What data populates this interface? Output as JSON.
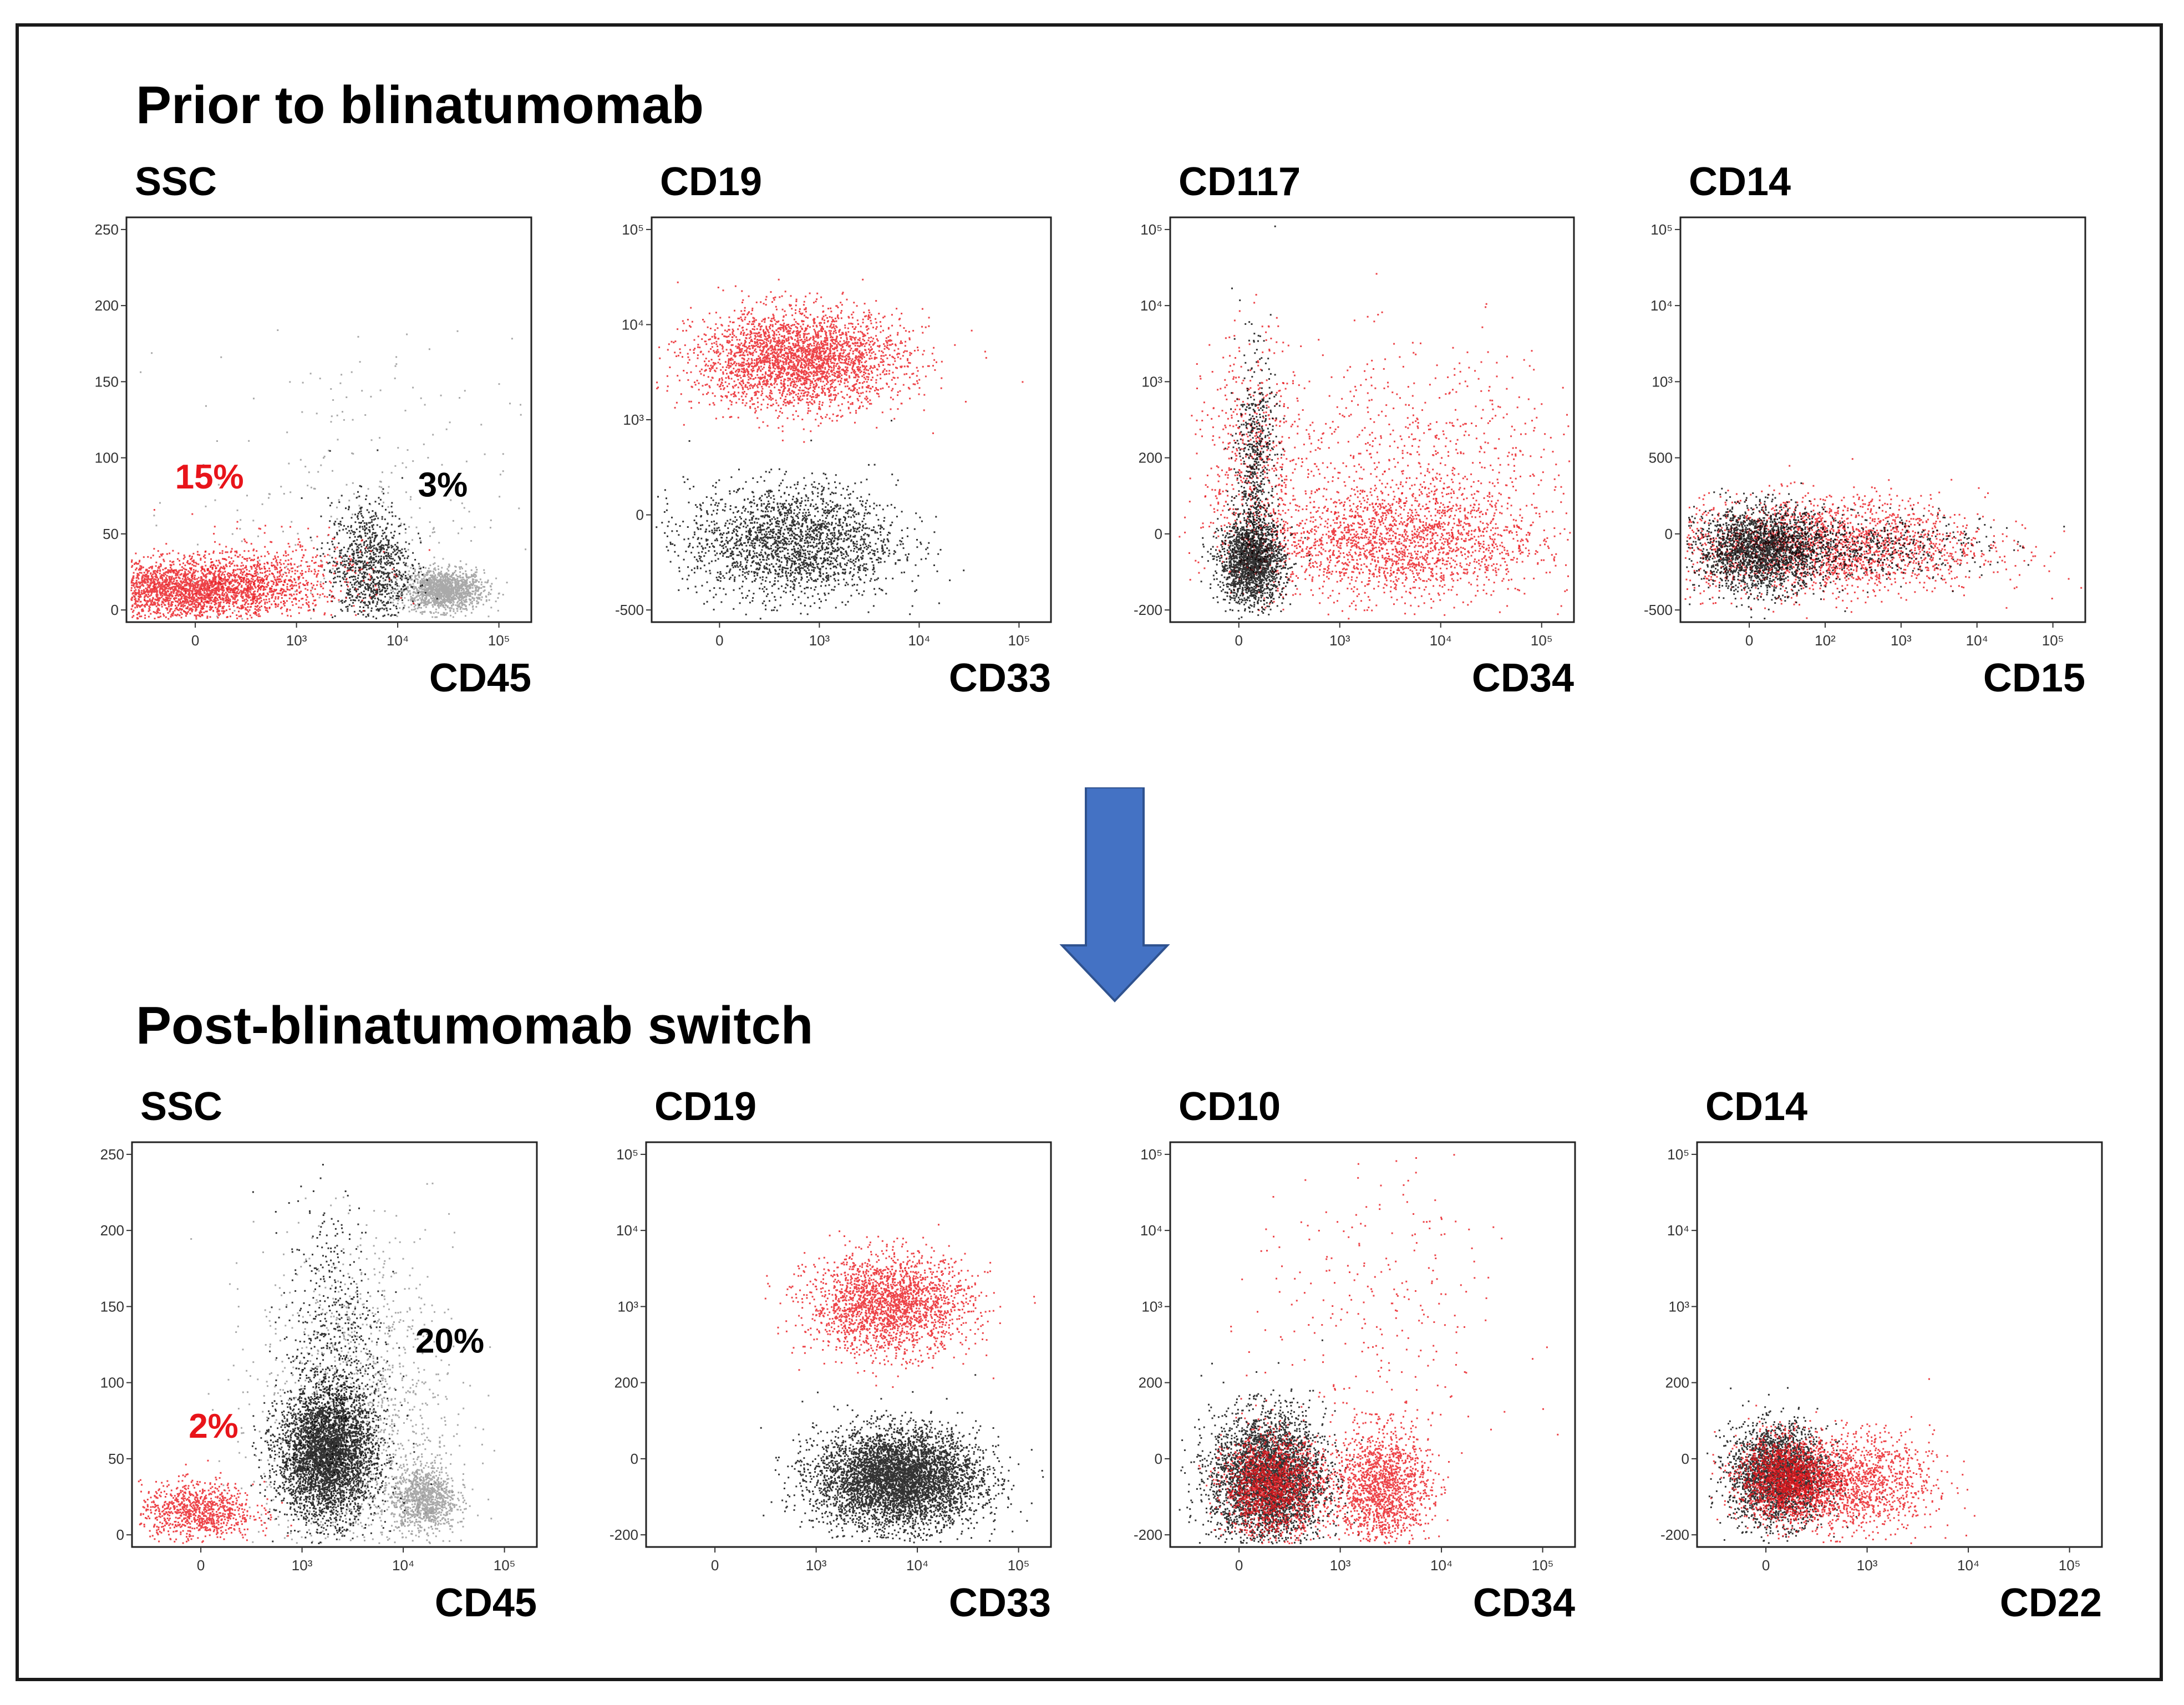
{
  "colors": {
    "red": "#e8141a",
    "black": "#000000",
    "gray": "#8c8c8c",
    "arrow": "#4472c4",
    "frame": "#1a1a1a"
  },
  "sections": [
    {
      "title": "Prior to blinatumomab"
    },
    {
      "title": "Post-blinatumomab switch"
    }
  ],
  "chart_data": [
    {
      "type": "scatter",
      "section": "Prior to blinatumomab",
      "ylabel": "SSC",
      "xlabel": "CD45",
      "yticks": [
        "0",
        "50",
        "100",
        "150",
        "200",
        "250"
      ],
      "xticks": [
        "0",
        "10³",
        "10⁴",
        "10⁵"
      ],
      "annotations": [
        {
          "text": "15%",
          "color": "red"
        },
        {
          "text": "3%",
          "color": "black"
        }
      ],
      "clusters": [
        {
          "color": "gray",
          "x": 0.78,
          "y": 0.08,
          "sx": 0.05,
          "sy": 0.025,
          "n": 1400
        },
        {
          "color": "gray",
          "x": 0.55,
          "y": 0.3,
          "sx": 0.2,
          "sy": 0.2,
          "n": 260
        },
        {
          "color": "black",
          "x": 0.6,
          "y": 0.14,
          "sx": 0.05,
          "sy": 0.08,
          "n": 1000
        },
        {
          "color": "red",
          "x": 0.15,
          "y": 0.08,
          "sx": 0.13,
          "sy": 0.035,
          "n": 2600
        },
        {
          "color": "red",
          "x": 0.35,
          "y": 0.12,
          "sx": 0.12,
          "sy": 0.05,
          "n": 500
        }
      ]
    },
    {
      "type": "scatter",
      "section": "Prior to blinatumomab",
      "ylabel": "CD19",
      "xlabel": "CD33",
      "yticks": [
        "-500",
        "0",
        "10³",
        "10⁴",
        "10⁵"
      ],
      "xticks": [
        "0",
        "10³",
        "10⁴",
        "10⁵"
      ],
      "clusters": [
        {
          "color": "black",
          "x": 0.35,
          "y": 0.2,
          "sx": 0.13,
          "sy": 0.07,
          "n": 2200
        },
        {
          "color": "red",
          "x": 0.37,
          "y": 0.65,
          "sx": 0.13,
          "sy": 0.06,
          "n": 3000
        }
      ]
    },
    {
      "type": "scatter",
      "section": "Prior to blinatumomab",
      "ylabel": "CD117",
      "xlabel": "CD34",
      "yticks": [
        "-200",
        "0",
        "200",
        "10³",
        "10⁴",
        "10⁵"
      ],
      "xticks": [
        "0",
        "10³",
        "10⁴",
        "10⁵"
      ],
      "clusters": [
        {
          "color": "red",
          "x": 0.55,
          "y": 0.2,
          "sx": 0.18,
          "sy": 0.07,
          "n": 2000
        },
        {
          "color": "red",
          "x": 0.6,
          "y": 0.4,
          "sx": 0.22,
          "sy": 0.14,
          "n": 700
        },
        {
          "color": "red",
          "x": 0.2,
          "y": 0.4,
          "sx": 0.06,
          "sy": 0.15,
          "n": 500
        },
        {
          "color": "black",
          "x": 0.2,
          "y": 0.15,
          "sx": 0.04,
          "sy": 0.05,
          "n": 1800
        },
        {
          "color": "black",
          "x": 0.21,
          "y": 0.38,
          "sx": 0.025,
          "sy": 0.14,
          "n": 600
        }
      ]
    },
    {
      "type": "scatter",
      "section": "Prior to blinatumomab",
      "ylabel": "CD14",
      "xlabel": "CD15",
      "yticks": [
        "-500",
        "0",
        "500",
        "10³",
        "10⁴",
        "10⁵"
      ],
      "xticks": [
        "0",
        "10²",
        "10³",
        "10⁴",
        "10⁵"
      ],
      "clusters": [
        {
          "color": "red",
          "x": 0.35,
          "y": 0.19,
          "sx": 0.2,
          "sy": 0.06,
          "n": 2200
        },
        {
          "color": "black",
          "x": 0.2,
          "y": 0.18,
          "sx": 0.08,
          "sy": 0.05,
          "n": 2200
        },
        {
          "color": "black",
          "x": 0.45,
          "y": 0.19,
          "sx": 0.15,
          "sy": 0.04,
          "n": 500
        }
      ]
    },
    {
      "type": "scatter",
      "section": "Post-blinatumomab switch",
      "ylabel": "SSC",
      "xlabel": "CD45",
      "yticks": [
        "0",
        "50",
        "100",
        "150",
        "200",
        "250"
      ],
      "xticks": [
        "0",
        "10³",
        "10⁴",
        "10⁵"
      ],
      "annotations": [
        {
          "text": "2%",
          "color": "red"
        },
        {
          "text": "20%",
          "color": "black"
        }
      ],
      "clusters": [
        {
          "color": "gray",
          "x": 0.55,
          "y": 0.3,
          "sx": 0.12,
          "sy": 0.22,
          "n": 1500
        },
        {
          "color": "gray",
          "x": 0.72,
          "y": 0.12,
          "sx": 0.04,
          "sy": 0.04,
          "n": 1000
        },
        {
          "color": "black",
          "x": 0.48,
          "y": 0.23,
          "sx": 0.06,
          "sy": 0.08,
          "n": 3800
        },
        {
          "color": "black",
          "x": 0.5,
          "y": 0.5,
          "sx": 0.06,
          "sy": 0.18,
          "n": 600
        },
        {
          "color": "red",
          "x": 0.16,
          "y": 0.09,
          "sx": 0.07,
          "sy": 0.035,
          "n": 900
        }
      ]
    },
    {
      "type": "scatter",
      "section": "Post-blinatumomab switch",
      "ylabel": "CD19",
      "xlabel": "CD33",
      "yticks": [
        "-200",
        "0",
        "200",
        "10³",
        "10⁴",
        "10⁵"
      ],
      "xticks": [
        "0",
        "10³",
        "10⁴",
        "10⁵"
      ],
      "clusters": [
        {
          "color": "red",
          "x": 0.6,
          "y": 0.6,
          "sx": 0.1,
          "sy": 0.06,
          "n": 2200
        },
        {
          "color": "black",
          "x": 0.62,
          "y": 0.17,
          "sx": 0.1,
          "sy": 0.06,
          "n": 5000
        }
      ]
    },
    {
      "type": "scatter",
      "section": "Post-blinatumomab switch",
      "ylabel": "CD10",
      "xlabel": "CD34",
      "yticks": [
        "-200",
        "0",
        "200",
        "10³",
        "10⁴",
        "10⁵"
      ],
      "xticks": [
        "0",
        "10³",
        "10⁴",
        "10⁵"
      ],
      "clusters": [
        {
          "color": "black",
          "x": 0.24,
          "y": 0.17,
          "sx": 0.07,
          "sy": 0.08,
          "n": 3600
        },
        {
          "color": "red",
          "x": 0.25,
          "y": 0.15,
          "sx": 0.06,
          "sy": 0.06,
          "n": 1600
        },
        {
          "color": "red",
          "x": 0.52,
          "y": 0.15,
          "sx": 0.06,
          "sy": 0.07,
          "n": 1500
        },
        {
          "color": "red",
          "x": 0.5,
          "y": 0.55,
          "sx": 0.15,
          "sy": 0.2,
          "n": 260
        }
      ]
    },
    {
      "type": "scatter",
      "section": "Post-blinatumomab switch",
      "ylabel": "CD14",
      "xlabel": "CD22",
      "yticks": [
        "-200",
        "0",
        "200",
        "10³",
        "10⁴",
        "10⁵"
      ],
      "xticks": [
        "0",
        "10³",
        "10⁴",
        "10⁵"
      ],
      "clusters": [
        {
          "color": "black",
          "x": 0.2,
          "y": 0.18,
          "sx": 0.06,
          "sy": 0.06,
          "n": 2600
        },
        {
          "color": "red",
          "x": 0.22,
          "y": 0.17,
          "sx": 0.06,
          "sy": 0.05,
          "n": 1500
        },
        {
          "color": "red",
          "x": 0.38,
          "y": 0.16,
          "sx": 0.1,
          "sy": 0.06,
          "n": 1400
        }
      ]
    }
  ]
}
